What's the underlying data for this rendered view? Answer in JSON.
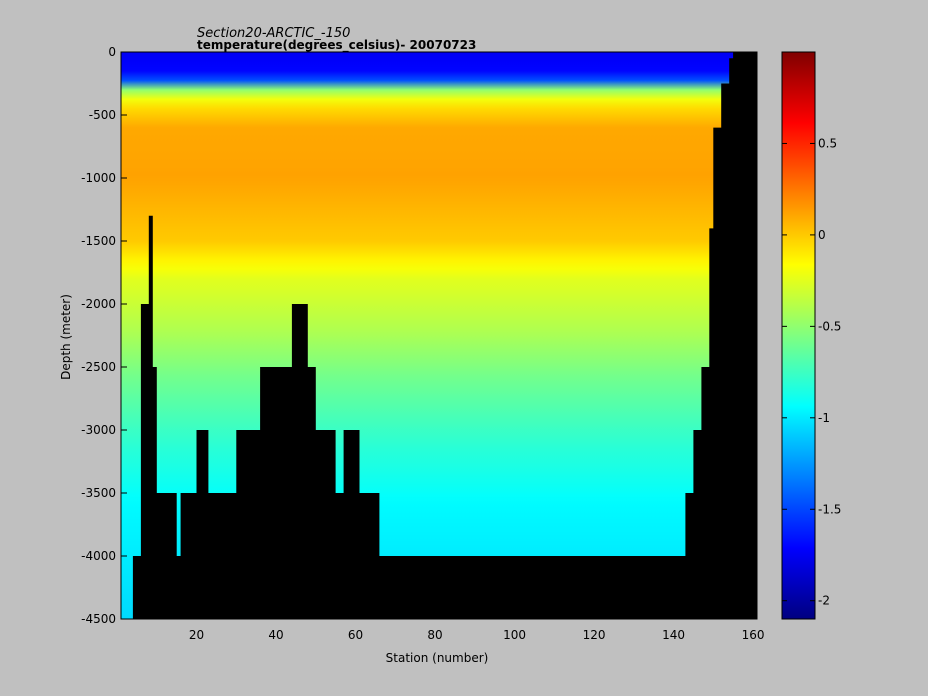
{
  "chart_data": {
    "type": "heatmap",
    "title": "Section20-ARCTIC_-150",
    "subtitle": "temperature(degrees_celsius)- 20070723",
    "xlabel": "Station (number)",
    "ylabel": "Depth (meter)",
    "xlim": [
      1,
      161
    ],
    "ylim": [
      -4500,
      0
    ],
    "xticks": [
      "20",
      "40",
      "60",
      "80",
      "100",
      "120",
      "140",
      "160"
    ],
    "yticks": [
      "0",
      "-500",
      "-1000",
      "-1500",
      "-2000",
      "-2500",
      "-3000",
      "-3500",
      "-4000",
      "-4500"
    ],
    "colorbar": {
      "range": [
        -2.1,
        1.0
      ],
      "ticks": [
        "0.5",
        "0",
        "-0.5",
        "-1",
        "-1.5",
        "-2"
      ],
      "colormap": "jet"
    },
    "mask_color": "#000000",
    "background_color": "#c0c0c0",
    "temperature_profile": [
      {
        "depth": 0,
        "temp": -1.75
      },
      {
        "depth": -150,
        "temp": -1.7
      },
      {
        "depth": -250,
        "temp": -1.4
      },
      {
        "depth": -300,
        "temp": -0.5
      },
      {
        "depth": -400,
        "temp": -0.1
      },
      {
        "depth": -600,
        "temp": 0.1
      },
      {
        "depth": -1000,
        "temp": 0.12
      },
      {
        "depth": -1500,
        "temp": 0.0
      },
      {
        "depth": -1800,
        "temp": -0.25
      },
      {
        "depth": -2200,
        "temp": -0.4
      },
      {
        "depth": -2600,
        "temp": -0.6
      },
      {
        "depth": -3100,
        "temp": -0.8
      },
      {
        "depth": -3600,
        "temp": -0.95
      },
      {
        "depth": -4500,
        "temp": -1.05
      }
    ],
    "bottom_depth_by_station": [
      {
        "station": 1,
        "depth": -4500
      },
      {
        "station": 4,
        "depth": -4000
      },
      {
        "station": 6,
        "depth": -2000
      },
      {
        "station": 8,
        "depth": -1300
      },
      {
        "station": 9,
        "depth": -2500
      },
      {
        "station": 10,
        "depth": -3500
      },
      {
        "station": 15,
        "depth": -4000
      },
      {
        "station": 16,
        "depth": -3500
      },
      {
        "station": 20,
        "depth": -3000
      },
      {
        "station": 23,
        "depth": -3500
      },
      {
        "station": 30,
        "depth": -3000
      },
      {
        "station": 36,
        "depth": -2500
      },
      {
        "station": 44,
        "depth": -2000
      },
      {
        "station": 48,
        "depth": -2500
      },
      {
        "station": 50,
        "depth": -3000
      },
      {
        "station": 55,
        "depth": -3500
      },
      {
        "station": 57,
        "depth": -3000
      },
      {
        "station": 61,
        "depth": -3500
      },
      {
        "station": 66,
        "depth": -4000
      },
      {
        "station": 143,
        "depth": -3500
      },
      {
        "station": 145,
        "depth": -3000
      },
      {
        "station": 147,
        "depth": -2500
      },
      {
        "station": 149,
        "depth": -1400
      },
      {
        "station": 150,
        "depth": -600
      },
      {
        "station": 152,
        "depth": -250
      },
      {
        "station": 154,
        "depth": -50
      },
      {
        "station": 155,
        "depth": 0
      }
    ]
  }
}
